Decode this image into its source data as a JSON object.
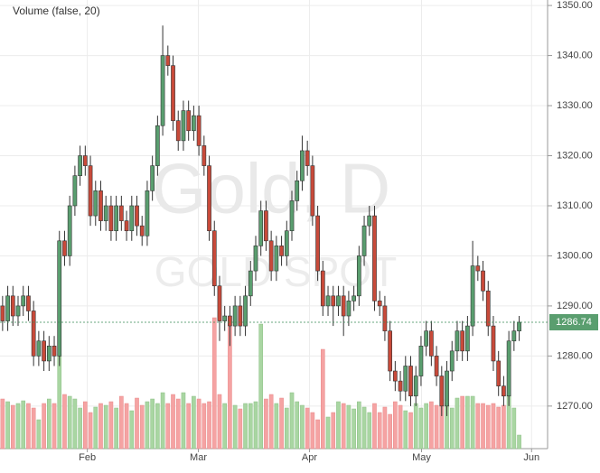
{
  "chart_data": {
    "type": "candlestick",
    "title": "Gold, D",
    "subtitle": "GOLD SPOT",
    "volume_label": "Volume (false, 20)",
    "open": [
      1290,
      1287,
      1292,
      1288,
      1290,
      1292,
      1289,
      1280,
      1283,
      1279,
      1282,
      1280,
      1303,
      1300,
      1310,
      1316,
      1320,
      1318,
      1308,
      1313,
      1307,
      1310,
      1305,
      1310,
      1307,
      1305,
      1310,
      1306,
      1304,
      1313,
      1318,
      1326,
      1340,
      1338,
      1327,
      1323,
      1329,
      1325,
      1328,
      1322,
      1318,
      1305,
      1294,
      1287,
      1288,
      1286,
      1290,
      1286,
      1292,
      1297,
      1302,
      1309,
      1303,
      1297,
      1302,
      1300,
      1305,
      1311,
      1315,
      1321,
      1318,
      1308,
      1297,
      1290,
      1292,
      1290,
      1292,
      1288,
      1291,
      1292,
      1300,
      1306,
      1308,
      1291,
      1290,
      1285,
      1277,
      1275,
      1273,
      1278,
      1272,
      1276,
      1282,
      1285,
      1280,
      1276,
      1270,
      1277,
      1281,
      1285,
      1281,
      1286,
      1298,
      1297,
      1293,
      1286,
      1279,
      1274,
      1272,
      1283,
      1285
    ],
    "high": [
      1292,
      1294,
      1294,
      1292,
      1294,
      1294,
      1291,
      1285,
      1285,
      1284,
      1284,
      1305,
      1305,
      1312,
      1318,
      1322,
      1322,
      1320,
      1315,
      1315,
      1312,
      1312,
      1312,
      1312,
      1309,
      1312,
      1312,
      1308,
      1315,
      1320,
      1328,
      1346,
      1342,
      1340,
      1329,
      1331,
      1331,
      1330,
      1330,
      1324,
      1320,
      1307,
      1296,
      1290,
      1290,
      1292,
      1292,
      1294,
      1299,
      1304,
      1311,
      1311,
      1305,
      1304,
      1304,
      1307,
      1313,
      1317,
      1324,
      1323,
      1320,
      1310,
      1299,
      1294,
      1294,
      1294,
      1294,
      1293,
      1294,
      1302,
      1308,
      1310,
      1310,
      1293,
      1292,
      1287,
      1279,
      1277,
      1280,
      1280,
      1278,
      1284,
      1287,
      1287,
      1282,
      1278,
      1279,
      1283,
      1287,
      1287,
      1288,
      1303,
      1300,
      1299,
      1295,
      1288,
      1281,
      1276,
      1285,
      1287,
      1288
    ],
    "low": [
      1285,
      1285,
      1286,
      1286,
      1288,
      1287,
      1278,
      1278,
      1277,
      1277,
      1278,
      1278,
      1298,
      1298,
      1308,
      1314,
      1316,
      1306,
      1306,
      1305,
      1305,
      1303,
      1303,
      1305,
      1303,
      1303,
      1304,
      1302,
      1302,
      1311,
      1316,
      1324,
      1336,
      1325,
      1321,
      1321,
      1323,
      1323,
      1320,
      1316,
      1303,
      1292,
      1283,
      1285,
      1282,
      1284,
      1284,
      1284,
      1290,
      1295,
      1300,
      1301,
      1295,
      1295,
      1298,
      1298,
      1303,
      1309,
      1313,
      1316,
      1306,
      1295,
      1288,
      1288,
      1286,
      1288,
      1284,
      1286,
      1289,
      1290,
      1298,
      1304,
      1289,
      1288,
      1283,
      1275,
      1273,
      1271,
      1271,
      1270,
      1270,
      1274,
      1280,
      1278,
      1274,
      1268,
      1268,
      1275,
      1279,
      1279,
      1279,
      1284,
      1295,
      1291,
      1284,
      1277,
      1272,
      1270,
      1270,
      1281,
      1283
    ],
    "close": [
      1287,
      1292,
      1288,
      1290,
      1292,
      1289,
      1280,
      1283,
      1279,
      1282,
      1280,
      1303,
      1300,
      1310,
      1316,
      1320,
      1318,
      1308,
      1313,
      1307,
      1310,
      1305,
      1310,
      1307,
      1305,
      1310,
      1306,
      1304,
      1313,
      1318,
      1326,
      1340,
      1338,
      1327,
      1323,
      1329,
      1325,
      1328,
      1322,
      1318,
      1305,
      1294,
      1287,
      1288,
      1286,
      1290,
      1286,
      1292,
      1297,
      1302,
      1309,
      1303,
      1297,
      1302,
      1300,
      1305,
      1311,
      1315,
      1321,
      1318,
      1308,
      1297,
      1290,
      1292,
      1290,
      1292,
      1288,
      1291,
      1292,
      1300,
      1306,
      1308,
      1291,
      1290,
      1285,
      1277,
      1275,
      1273,
      1278,
      1272,
      1276,
      1282,
      1285,
      1280,
      1276,
      1270,
      1277,
      1281,
      1285,
      1281,
      1286,
      1298,
      1297,
      1293,
      1286,
      1279,
      1274,
      1272,
      1283,
      1285,
      1286.74
    ],
    "volume": [
      55,
      52,
      48,
      50,
      53,
      50,
      45,
      32,
      50,
      55,
      50,
      105,
      60,
      58,
      55,
      45,
      52,
      40,
      46,
      50,
      48,
      52,
      45,
      58,
      50,
      42,
      56,
      48,
      52,
      55,
      50,
      62,
      50,
      60,
      55,
      62,
      50,
      58,
      55,
      50,
      52,
      145,
      60,
      50,
      135,
      48,
      44,
      50,
      50,
      52,
      138,
      55,
      60,
      50,
      56,
      45,
      62,
      52,
      48,
      45,
      40,
      32,
      110,
      35,
      40,
      52,
      50,
      48,
      44,
      52,
      46,
      40,
      50,
      40,
      46,
      38,
      52,
      48,
      42,
      40,
      50,
      45,
      50,
      52,
      48,
      55,
      50,
      45,
      56,
      58,
      58,
      58,
      50,
      50,
      48,
      50,
      46,
      48,
      60,
      45,
      15
    ],
    "up_color": "#5a9e6f",
    "down_color": "#c84a3a",
    "volume_up_color": "#a9d6a2",
    "volume_down_color": "#f5a3a3",
    "ylim": [
      1261.5,
      1351.1
    ],
    "yticks": [
      {
        "value": 1270,
        "label": "1270.00"
      },
      {
        "value": 1280,
        "label": "1280.00"
      },
      {
        "value": 1290,
        "label": "1290.00"
      },
      {
        "value": 1300,
        "label": "1300.00"
      },
      {
        "value": 1310,
        "label": "1310.00"
      },
      {
        "value": 1320,
        "label": "1320.00"
      },
      {
        "value": 1330,
        "label": "1330.00"
      },
      {
        "value": 1340,
        "label": "1340.00"
      },
      {
        "value": 1350,
        "label": "1350.00"
      }
    ],
    "xlim": [
      -0.5,
      105.5
    ],
    "xticks": [
      {
        "value": 16.4,
        "label": "Feb"
      },
      {
        "value": 37.9,
        "label": "Mar"
      },
      {
        "value": 59.4,
        "label": "Apr"
      },
      {
        "value": 81.1,
        "label": "May"
      },
      {
        "value": 102.4,
        "label": "Jun"
      }
    ],
    "grid": true
  }
}
